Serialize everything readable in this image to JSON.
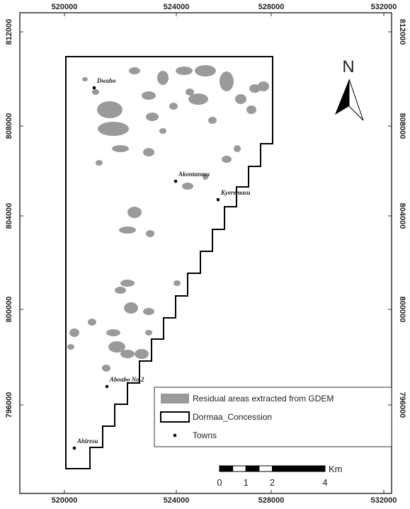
{
  "map": {
    "x_ticks": [
      520000,
      524000,
      528000,
      532000
    ],
    "y_ticks": [
      812000,
      808000,
      804000,
      800000,
      796000
    ],
    "north": "N",
    "towns": [
      "Dwaho",
      "Akontanmu",
      "Kyeremasu",
      "Aboabo No.2",
      "Ahiresu"
    ],
    "legend": [
      "Residual areas extracted from GDEM",
      "Dormaa_Concession",
      "Towns"
    ],
    "scale": {
      "ticks": [
        0,
        1,
        2,
        4
      ],
      "unit": "Km"
    }
  }
}
